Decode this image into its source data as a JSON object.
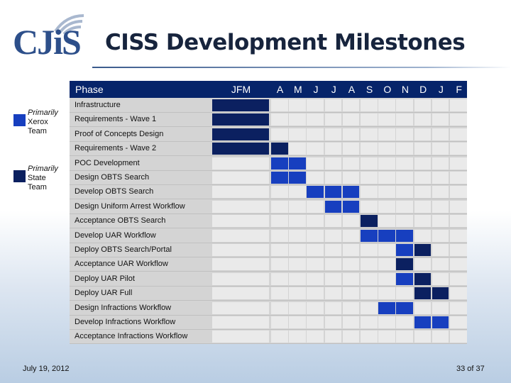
{
  "logo": {
    "text": "CJiS"
  },
  "title": "CISS Development Milestones",
  "legend": [
    {
      "label_line1": "Primarily",
      "label_line2": "Xerox",
      "label_line3": "Team",
      "color": "#173fbf"
    },
    {
      "label_line1": "Primarily",
      "label_line2": "State",
      "label_line3": "Team",
      "color": "#0b2060"
    }
  ],
  "header": {
    "phase_label": "Phase",
    "months": [
      "JFM",
      "A",
      "M",
      "J",
      "J",
      "A",
      "S",
      "O",
      "N",
      "D",
      "J",
      "F"
    ]
  },
  "colors": {
    "header_bg": "#06246a",
    "xerox": "#173fbf",
    "state": "#0b2060",
    "row_bg": "#d4d4d4",
    "empty_cell": "#eaeaea"
  },
  "rows": [
    {
      "phase": "Infrastructure",
      "cells": [
        "D",
        "",
        "",
        "",
        "",
        "",
        "",
        "",
        "",
        "",
        "",
        ""
      ]
    },
    {
      "phase": "Requirements - Wave 1",
      "cells": [
        "D",
        "",
        "",
        "",
        "",
        "",
        "",
        "",
        "",
        "",
        "",
        ""
      ]
    },
    {
      "phase": "Proof of Concepts Design",
      "cells": [
        "D",
        "",
        "",
        "",
        "",
        "",
        "",
        "",
        "",
        "",
        "",
        ""
      ]
    },
    {
      "phase": "Requirements - Wave 2",
      "cells": [
        "D",
        "D",
        "",
        "",
        "",
        "",
        "",
        "",
        "",
        "",
        "",
        ""
      ]
    },
    {
      "phase": "POC Development",
      "cells": [
        "",
        "L",
        "L",
        "",
        "",
        "",
        "",
        "",
        "",
        "",
        "",
        ""
      ]
    },
    {
      "phase": "Design OBTS Search",
      "cells": [
        "",
        "L",
        "L",
        "",
        "",
        "",
        "",
        "",
        "",
        "",
        "",
        ""
      ]
    },
    {
      "phase": "Develop OBTS Search",
      "cells": [
        "",
        "",
        "",
        "L",
        "L",
        "L",
        "",
        "",
        "",
        "",
        "",
        ""
      ]
    },
    {
      "phase": "Design Uniform Arrest Workflow",
      "cells": [
        "",
        "",
        "",
        "",
        "L",
        "L",
        "",
        "",
        "",
        "",
        "",
        ""
      ]
    },
    {
      "phase": "Acceptance  OBTS Search",
      "cells": [
        "",
        "",
        "",
        "",
        "",
        "",
        "D",
        "",
        "",
        "",
        "",
        ""
      ]
    },
    {
      "phase": "Develop UAR Workflow",
      "cells": [
        "",
        "",
        "",
        "",
        "",
        "",
        "L",
        "L",
        "L",
        "",
        "",
        ""
      ]
    },
    {
      "phase": "Deploy OBTS Search/Portal",
      "cells": [
        "",
        "",
        "",
        "",
        "",
        "",
        "",
        "",
        "L",
        "D",
        "",
        ""
      ]
    },
    {
      "phase": "Acceptance UAR Workflow",
      "cells": [
        "",
        "",
        "",
        "",
        "",
        "",
        "",
        "",
        "D",
        "",
        "",
        ""
      ]
    },
    {
      "phase": "Deploy UAR Pilot",
      "cells": [
        "",
        "",
        "",
        "",
        "",
        "",
        "",
        "",
        "L",
        "D",
        "",
        ""
      ]
    },
    {
      "phase": "Deploy UAR Full",
      "cells": [
        "",
        "",
        "",
        "",
        "",
        "",
        "",
        "",
        "",
        "D",
        "D",
        ""
      ]
    },
    {
      "phase": "Design Infractions Workflow",
      "cells": [
        "",
        "",
        "",
        "",
        "",
        "",
        "",
        "L",
        "L",
        "",
        "",
        ""
      ]
    },
    {
      "phase": "Develop Infractions Workflow",
      "cells": [
        "",
        "",
        "",
        "",
        "",
        "",
        "",
        "",
        "",
        "L",
        "L",
        ""
      ]
    },
    {
      "phase": "Acceptance Infractions Workflow",
      "cells": [
        "",
        "",
        "",
        "",
        "",
        "",
        "",
        "",
        "",
        "",
        "",
        ""
      ]
    }
  ],
  "footer": {
    "date": "July 19, 2012",
    "page": "33 of 37"
  }
}
